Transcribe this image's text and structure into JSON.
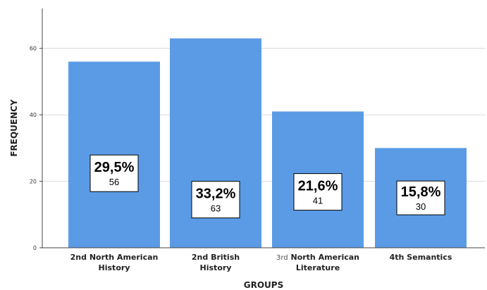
{
  "chart_data": {
    "type": "bar",
    "categories": [
      [
        "2nd North American",
        "History"
      ],
      [
        "2nd British",
        "History"
      ],
      [
        "3rd North American",
        "Literature"
      ],
      [
        "4th Semantics"
      ]
    ],
    "values": [
      56,
      63,
      41,
      30
    ],
    "percent_labels": [
      "29,5%",
      "33,2%",
      "21,6%",
      "15,8%"
    ],
    "count_labels": [
      "56",
      "63",
      "41",
      "30"
    ],
    "xlabel": "GROUPS",
    "ylabel": "FREQUENCY",
    "ylim": [
      0,
      72
    ],
    "yticks": [
      0,
      20,
      40,
      60
    ],
    "grid": true,
    "bar_color": "#5b9be6"
  }
}
